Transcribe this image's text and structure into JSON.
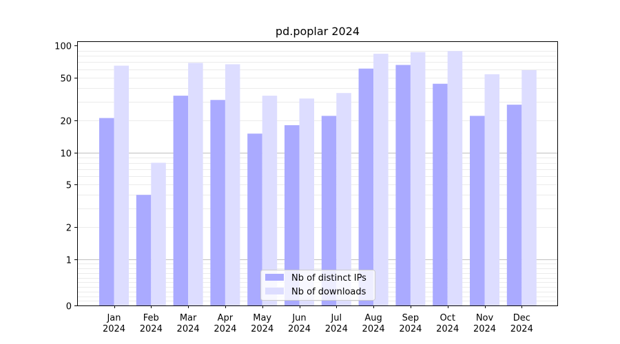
{
  "chart_data": {
    "type": "bar",
    "title": "pd.poplar 2024",
    "xlabel": "",
    "ylabel": "",
    "y_scale": "symlog",
    "ylim": [
      0,
      110
    ],
    "y_ticks": [
      0,
      1,
      2,
      5,
      10,
      20,
      50,
      100
    ],
    "y_tick_labels": [
      "0",
      "1",
      "2",
      "5",
      "10",
      "20",
      "50",
      "100"
    ],
    "categories": [
      "Jan\n2024",
      "Feb\n2024",
      "Mar\n2024",
      "Apr\n2024",
      "May\n2024",
      "Jun\n2024",
      "Jul\n2024",
      "Aug\n2024",
      "Sep\n2024",
      "Oct\n2024",
      "Nov\n2024",
      "Dec\n2024"
    ],
    "series": [
      {
        "name": "Nb of distinct IPs",
        "color": "#aaaaff",
        "values": [
          21,
          4,
          34,
          31,
          15,
          18,
          22,
          61,
          66,
          44,
          22,
          28
        ]
      },
      {
        "name": "Nb of downloads",
        "color": "#ddddff",
        "values": [
          65,
          8,
          69,
          67,
          34,
          32,
          36,
          84,
          87,
          89,
          54,
          59
        ]
      }
    ],
    "grid": true,
    "legend_position": "lower center"
  }
}
